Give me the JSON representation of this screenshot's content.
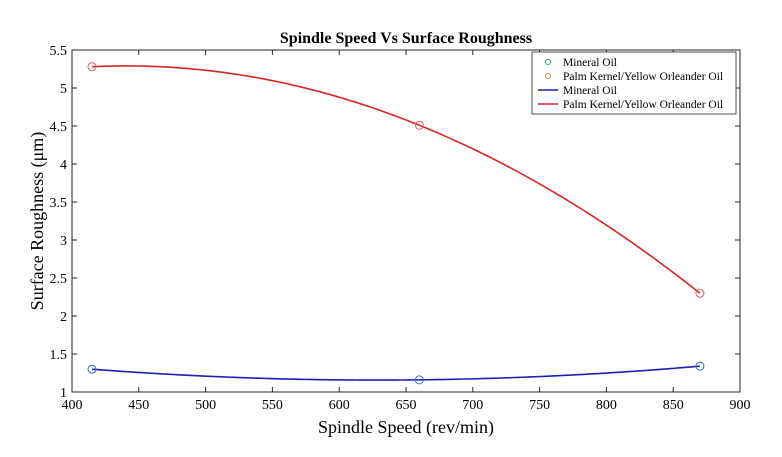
{
  "chart_data": {
    "type": "scatter",
    "title": "Spindle Speed Vs Surface Roughness",
    "xlabel": "Spindle Speed (rev/min)",
    "ylabel": "Surface Roughness (μm)",
    "xlim": [
      400,
      900
    ],
    "ylim": [
      1,
      5.5
    ],
    "xticks": [
      "400",
      "450",
      "500",
      "550",
      "600",
      "650",
      "700",
      "750",
      "800",
      "850",
      "900"
    ],
    "yticks": [
      "1",
      "1.5",
      "2",
      "2.5",
      "3",
      "3.5",
      "4",
      "4.5",
      "5",
      "5.5"
    ],
    "grid": false,
    "legend_position": "top-right",
    "series": [
      {
        "name": "Mineral Oil",
        "kind": "points",
        "x": [
          415,
          660,
          870
        ],
        "y": [
          1.3,
          1.16,
          1.34
        ],
        "color": "#2b6fc4",
        "legend_color": "#2ca58d"
      },
      {
        "name": "Palm Kernel/Yellow Orleander Oil",
        "kind": "points",
        "x": [
          415,
          660,
          870
        ],
        "y": [
          5.28,
          4.51,
          2.3
        ],
        "color": "#e06060",
        "legend_color": "#e08a3c"
      },
      {
        "name": "Mineral Oil",
        "kind": "fit",
        "x": [
          415,
          660,
          870
        ],
        "y": [
          1.3,
          1.16,
          1.34
        ],
        "color": "#1f1fb4"
      },
      {
        "name": "Palm Kernel/Yellow Orleander Oil",
        "kind": "fit",
        "x": [
          415,
          660,
          870
        ],
        "y": [
          5.28,
          4.51,
          2.3
        ],
        "color": "#d62728"
      }
    ]
  }
}
